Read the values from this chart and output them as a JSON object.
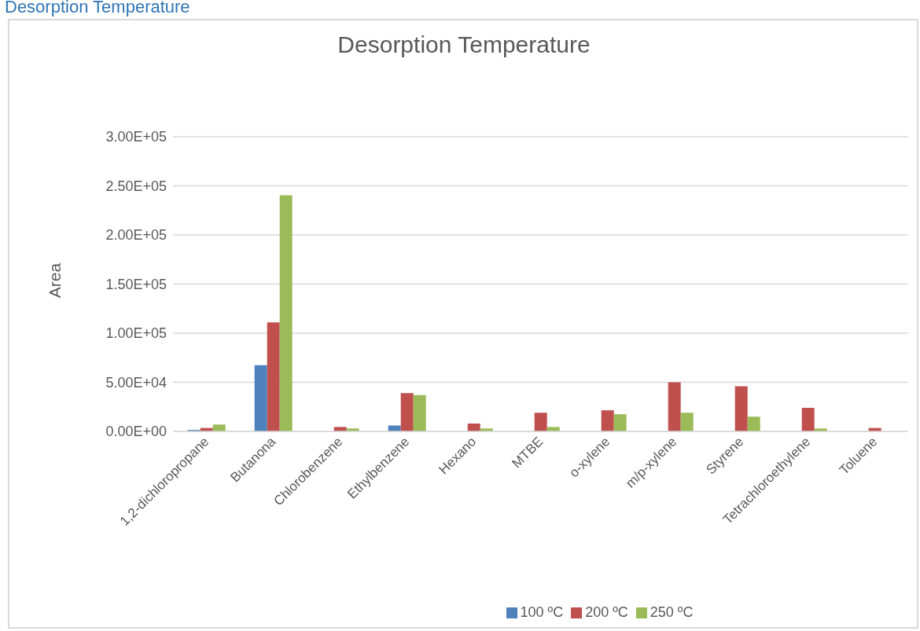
{
  "chart_data": {
    "type": "bar",
    "title": "Desorption Temperature",
    "ylabel": "Area",
    "annotations": [
      "Desorption Temperature"
    ],
    "categories": [
      "1,2-dichloropropane",
      "Butanona",
      "Chlorobenzene",
      "Ethylbenzene",
      "Hexano",
      "MTBE",
      "o-xylene",
      "m/p-xylene",
      "Styrene",
      "Tetrachloroethylene",
      "Toluene"
    ],
    "series": [
      {
        "name": "100 ºC",
        "color": "#4f81bd",
        "values": [
          1500,
          67500,
          0,
          6000,
          0,
          0,
          0,
          0,
          0,
          0,
          0
        ]
      },
      {
        "name": "200 ºC",
        "color": "#c0504d",
        "values": [
          3500,
          111000,
          4500,
          39000,
          8000,
          19000,
          21500,
          50000,
          46000,
          24000,
          3500
        ]
      },
      {
        "name": "250 ºC",
        "color": "#9bbb59",
        "values": [
          7000,
          240500,
          3000,
          37000,
          3000,
          4500,
          17500,
          19000,
          15000,
          3000,
          0
        ]
      }
    ],
    "ylim": [
      0,
      300000
    ],
    "yticks": [
      {
        "value": 0,
        "label": "0.00E+00"
      },
      {
        "value": 50000,
        "label": "5.00E+04"
      },
      {
        "value": 100000,
        "label": "1.00E+05"
      },
      {
        "value": 150000,
        "label": "1.50E+05"
      },
      {
        "value": 200000,
        "label": "2.00E+05"
      },
      {
        "value": 250000,
        "label": "2.50E+05"
      },
      {
        "value": 300000,
        "label": "3.00E+05"
      }
    ],
    "grid": "y",
    "legend": "bottom"
  }
}
